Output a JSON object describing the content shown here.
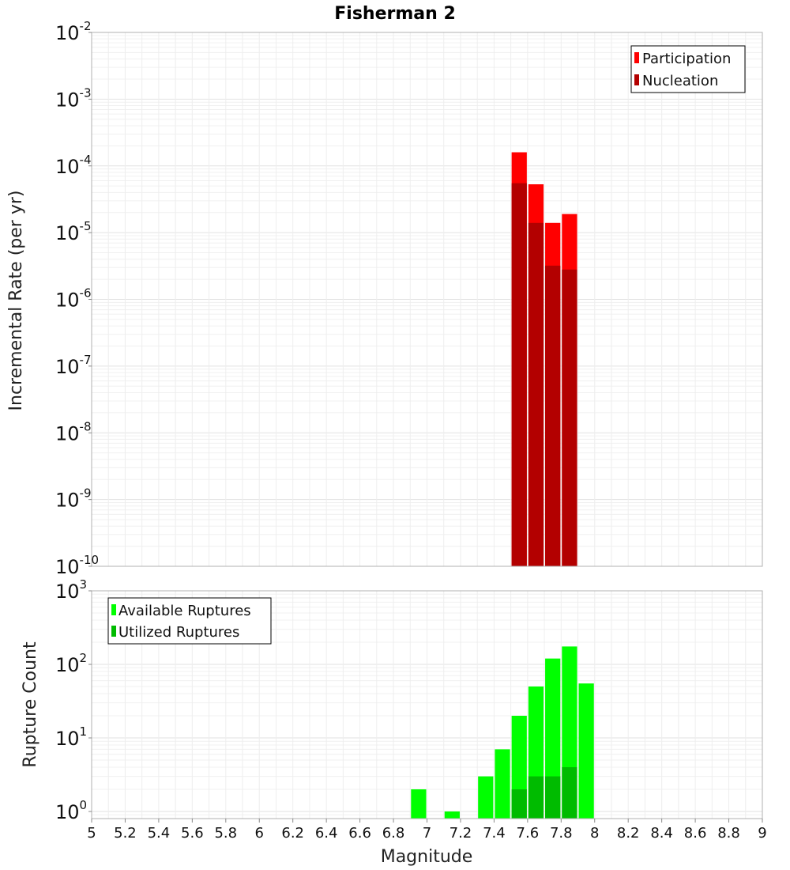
{
  "chart_data": [
    {
      "type": "bar",
      "title": "Fisherman 2",
      "xlabel": "Magnitude",
      "ylabel": "Incremental Rate (per yr)",
      "yscale": "log",
      "ylim": [
        1e-10,
        0.01
      ],
      "xlim": [
        5,
        9
      ],
      "grid": true,
      "legend_position": "top-right",
      "y_ticks": [
        {
          "base": "10",
          "exp": "-10"
        },
        {
          "base": "10",
          "exp": "-9"
        },
        {
          "base": "10",
          "exp": "-8"
        },
        {
          "base": "10",
          "exp": "-7"
        },
        {
          "base": "10",
          "exp": "-6"
        },
        {
          "base": "10",
          "exp": "-5"
        },
        {
          "base": "10",
          "exp": "-4"
        },
        {
          "base": "10",
          "exp": "-3"
        },
        {
          "base": "10",
          "exp": "-2"
        }
      ],
      "series": [
        {
          "name": "Participation",
          "color": "#ff0000",
          "x": [
            7.55,
            7.65,
            7.75,
            7.85
          ],
          "values": [
            0.00016,
            5.3e-05,
            1.4e-05,
            1.9e-05
          ]
        },
        {
          "name": "Nucleation",
          "color": "#b30000",
          "x": [
            7.55,
            7.65,
            7.75,
            7.85
          ],
          "values": [
            5.5e-05,
            1.4e-05,
            3.2e-06,
            2.8e-06
          ]
        }
      ]
    },
    {
      "type": "bar",
      "title": "",
      "xlabel": "Magnitude",
      "ylabel": "Rupture Count",
      "yscale": "log",
      "ylim": [
        0.8,
        1000
      ],
      "xlim": [
        5,
        9
      ],
      "grid": true,
      "legend_position": "top-left",
      "y_ticks": [
        {
          "base": "10",
          "exp": "0"
        },
        {
          "base": "10",
          "exp": "1"
        },
        {
          "base": "10",
          "exp": "2"
        },
        {
          "base": "10",
          "exp": "3"
        }
      ],
      "x_ticks": [
        "5",
        "5.2",
        "5.4",
        "5.6",
        "5.8",
        "6",
        "6.2",
        "6.4",
        "6.6",
        "6.8",
        "7",
        "7.2",
        "7.4",
        "7.6",
        "7.8",
        "8",
        "8.2",
        "8.4",
        "8.6",
        "8.8",
        "9"
      ],
      "series": [
        {
          "name": "Available Ruptures",
          "color": "#00ff00",
          "x": [
            6.95,
            7.15,
            7.35,
            7.45,
            7.55,
            7.65,
            7.75,
            7.85,
            7.95
          ],
          "values": [
            2,
            1,
            3,
            7,
            20,
            50,
            120,
            175,
            55
          ]
        },
        {
          "name": "Utilized Ruptures",
          "color": "#00bb00",
          "x": [
            7.55,
            7.65,
            7.75,
            7.85
          ],
          "values": [
            2,
            3,
            3,
            4
          ]
        }
      ]
    }
  ]
}
